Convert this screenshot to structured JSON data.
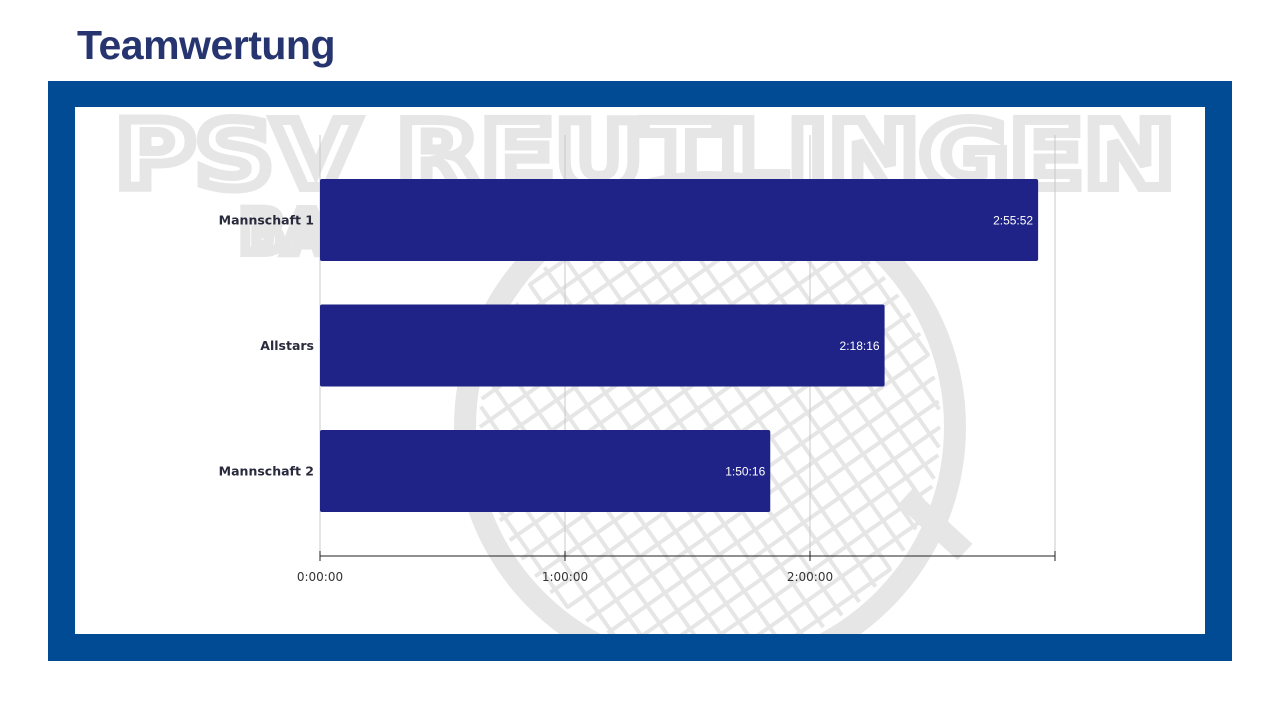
{
  "page": {
    "title": "Teamwertung"
  },
  "watermark": {
    "text": "PSV REUTLINGEN",
    "subtext": "BA"
  },
  "colors": {
    "title": "#26346f",
    "frame": "#014a94",
    "bar": "#1f2286",
    "watermark": "#e6e6e6"
  },
  "chart_data": {
    "type": "bar",
    "orientation": "horizontal",
    "categories": [
      "Mannschaft 1",
      "Allstars",
      "Mannschaft 2"
    ],
    "values": [
      10552,
      8296,
      6616
    ],
    "value_labels": [
      "2:55:52",
      "2:18:16",
      "1:50:16"
    ],
    "xlim": [
      0,
      10800
    ],
    "xticks": [
      0,
      3600,
      7200,
      10800
    ],
    "xtick_labels": [
      "0:00:00",
      "1:00:00",
      "2:00:00",
      ""
    ],
    "grid": true,
    "legend": "none"
  }
}
